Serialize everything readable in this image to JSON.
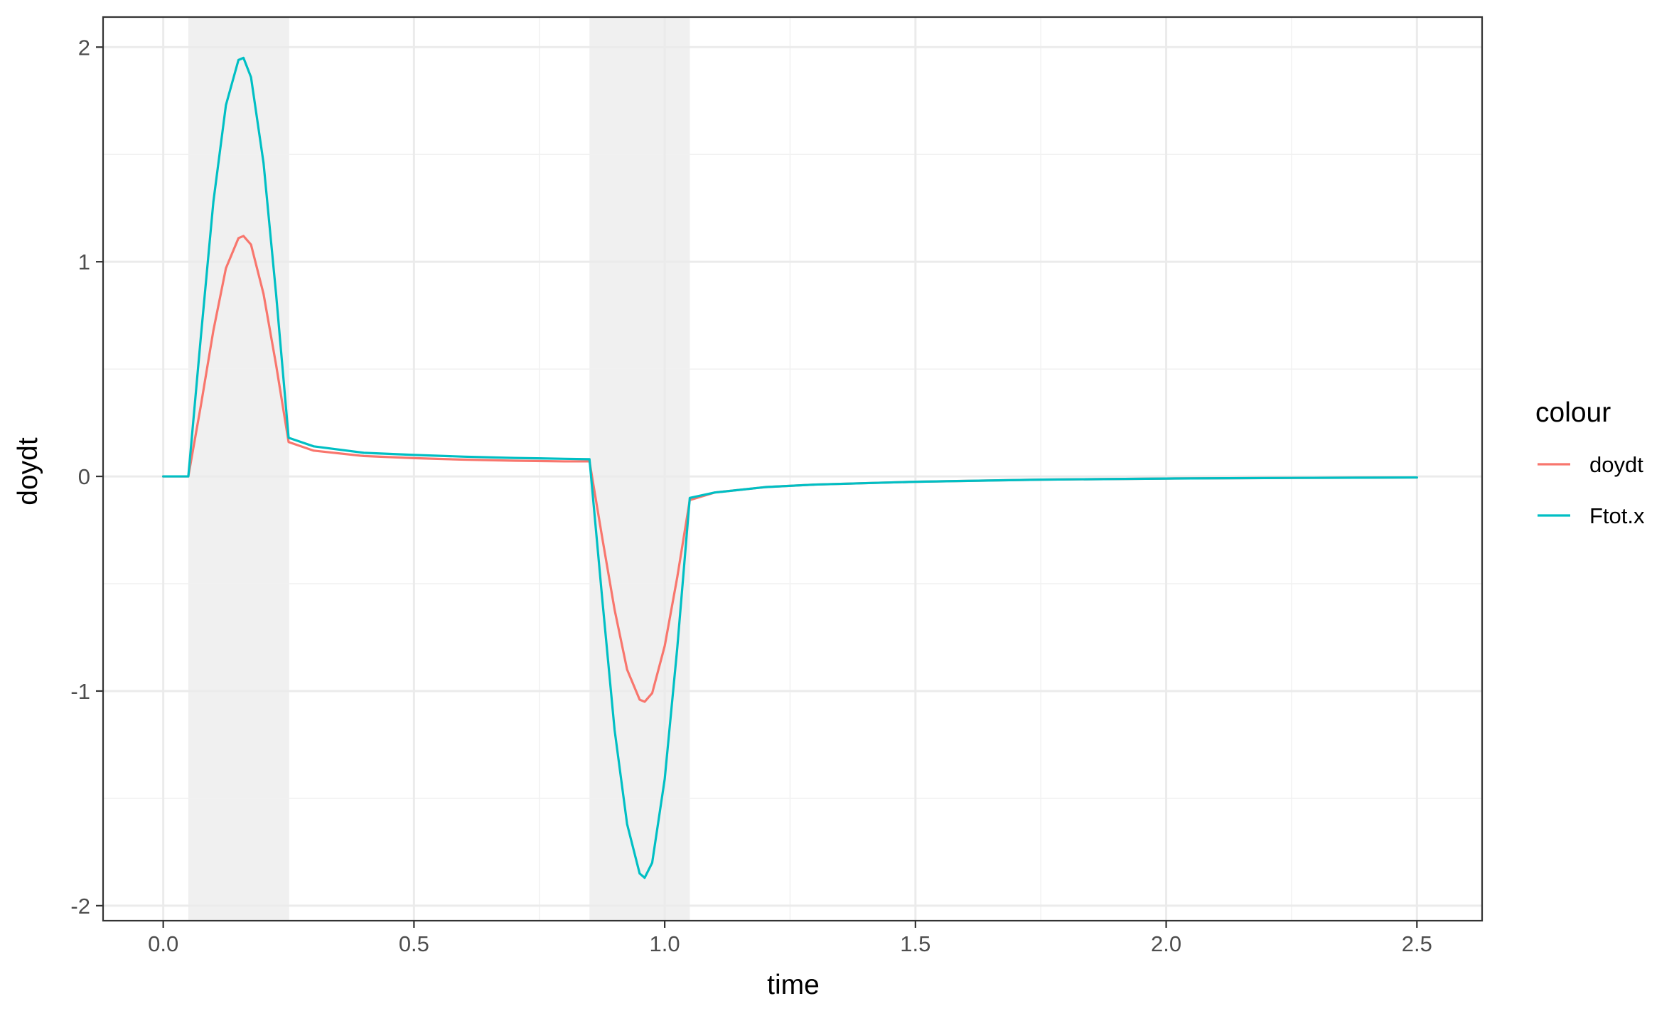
{
  "chart_data": {
    "type": "line",
    "title": "",
    "xlabel": "time",
    "ylabel": "doydt",
    "xlim": [
      -0.12,
      2.63
    ],
    "ylim": [
      -2.07,
      2.14
    ],
    "x_ticks": [
      0.0,
      0.5,
      1.0,
      1.5,
      2.0,
      2.5
    ],
    "x_tick_labels": [
      "0.0",
      "0.5",
      "1.0",
      "1.5",
      "2.0",
      "2.5"
    ],
    "y_ticks": [
      -2,
      -1,
      0,
      1,
      2
    ],
    "y_tick_labels": [
      "-2",
      "-1",
      "0",
      "1",
      "2"
    ],
    "shaded_intervals": [
      {
        "start": 0.05,
        "end": 0.25
      },
      {
        "start": 0.85,
        "end": 1.05
      }
    ],
    "grid": true,
    "theme": "bw",
    "legend": {
      "title": "colour",
      "position": "right"
    },
    "series": [
      {
        "name": "doydt",
        "color": "#F8766D",
        "points": [
          [
            0.0,
            0.0
          ],
          [
            0.05,
            0.0
          ],
          [
            0.075,
            0.33
          ],
          [
            0.1,
            0.68
          ],
          [
            0.125,
            0.97
          ],
          [
            0.15,
            1.11
          ],
          [
            0.16,
            1.12
          ],
          [
            0.175,
            1.08
          ],
          [
            0.2,
            0.85
          ],
          [
            0.225,
            0.52
          ],
          [
            0.25,
            0.16
          ],
          [
            0.3,
            0.12
          ],
          [
            0.4,
            0.095
          ],
          [
            0.5,
            0.085
          ],
          [
            0.6,
            0.078
          ],
          [
            0.7,
            0.073
          ],
          [
            0.8,
            0.07
          ],
          [
            0.85,
            0.07
          ],
          [
            0.875,
            -0.28
          ],
          [
            0.9,
            -0.62
          ],
          [
            0.925,
            -0.9
          ],
          [
            0.95,
            -1.04
          ],
          [
            0.96,
            -1.05
          ],
          [
            0.975,
            -1.01
          ],
          [
            1.0,
            -0.79
          ],
          [
            1.025,
            -0.47
          ],
          [
            1.05,
            -0.11
          ],
          [
            1.1,
            -0.075
          ],
          [
            1.2,
            -0.05
          ],
          [
            1.3,
            -0.038
          ],
          [
            1.5,
            -0.025
          ],
          [
            1.75,
            -0.015
          ],
          [
            2.0,
            -0.01
          ],
          [
            2.25,
            -0.007
          ],
          [
            2.5,
            -0.005
          ]
        ]
      },
      {
        "name": "Ftot.x",
        "color": "#00BFC4",
        "points": [
          [
            0.0,
            0.0
          ],
          [
            0.05,
            0.0
          ],
          [
            0.075,
            0.65
          ],
          [
            0.1,
            1.28
          ],
          [
            0.125,
            1.73
          ],
          [
            0.15,
            1.94
          ],
          [
            0.16,
            1.95
          ],
          [
            0.175,
            1.86
          ],
          [
            0.2,
            1.46
          ],
          [
            0.225,
            0.85
          ],
          [
            0.25,
            0.18
          ],
          [
            0.3,
            0.14
          ],
          [
            0.4,
            0.11
          ],
          [
            0.5,
            0.1
          ],
          [
            0.6,
            0.092
          ],
          [
            0.7,
            0.086
          ],
          [
            0.8,
            0.082
          ],
          [
            0.85,
            0.08
          ],
          [
            0.875,
            -0.56
          ],
          [
            0.9,
            -1.18
          ],
          [
            0.925,
            -1.62
          ],
          [
            0.95,
            -1.85
          ],
          [
            0.96,
            -1.87
          ],
          [
            0.975,
            -1.8
          ],
          [
            1.0,
            -1.41
          ],
          [
            1.025,
            -0.8
          ],
          [
            1.05,
            -0.1
          ],
          [
            1.1,
            -0.075
          ],
          [
            1.2,
            -0.05
          ],
          [
            1.3,
            -0.038
          ],
          [
            1.5,
            -0.025
          ],
          [
            1.75,
            -0.015
          ],
          [
            2.0,
            -0.01
          ],
          [
            2.25,
            -0.007
          ],
          [
            2.5,
            -0.005
          ]
        ]
      }
    ]
  }
}
